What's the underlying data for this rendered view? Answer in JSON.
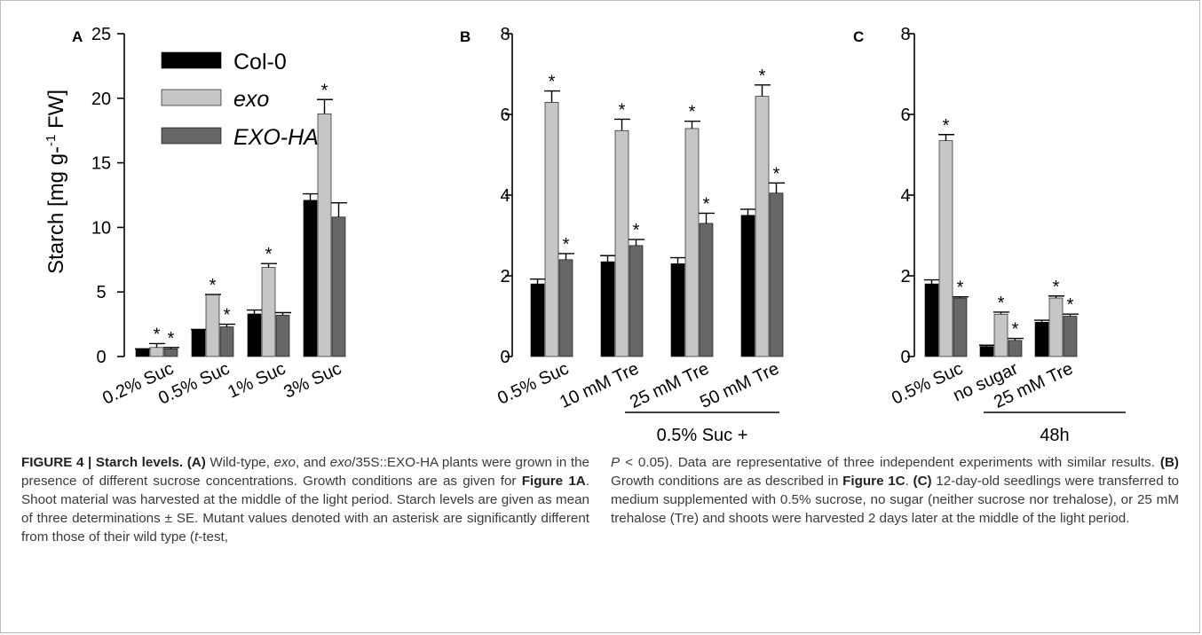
{
  "colors": {
    "col0": "#000000",
    "exo": "#c6c6c6",
    "exoha": "#666666"
  },
  "legend": {
    "items": [
      "Col-0",
      "exo",
      "EXO-HA"
    ],
    "italic": [
      false,
      true,
      true
    ]
  },
  "chart_data": [
    {
      "panel": "A",
      "type": "bar",
      "ylabel": "Starch [mg g-1 FW]",
      "ylim": [
        0,
        25
      ],
      "yticks": [
        "0",
        "5",
        "10",
        "15",
        "20",
        "25"
      ],
      "categories": [
        "0.2% Suc",
        "0.5% Suc",
        "1% Suc",
        "3% Suc"
      ],
      "series": [
        {
          "name": "Col-0",
          "values": [
            0.6,
            2.1,
            3.3,
            12.1
          ],
          "errors": [
            0.0,
            0.0,
            0.3,
            0.5
          ],
          "significant": [
            false,
            false,
            false,
            false
          ]
        },
        {
          "name": "exo",
          "values": [
            0.7,
            4.8,
            6.9,
            18.8
          ],
          "errors": [
            0.3,
            0.0,
            0.3,
            1.1
          ],
          "significant": [
            true,
            true,
            true,
            true
          ]
        },
        {
          "name": "EXO-HA",
          "values": [
            0.6,
            2.3,
            3.2,
            10.8
          ],
          "errors": [
            0.1,
            0.2,
            0.2,
            1.1
          ],
          "significant": [
            true,
            true,
            false,
            false
          ]
        }
      ]
    },
    {
      "panel": "B",
      "type": "bar",
      "ylim": [
        0,
        8
      ],
      "yticks": [
        "0",
        "2",
        "4",
        "6",
        "8"
      ],
      "categories": [
        "0.5% Suc",
        "10 mM Tre",
        "25 mM Tre",
        "50 mM Tre"
      ],
      "group_label": "0.5% Suc +",
      "series": [
        {
          "name": "Col-0",
          "values": [
            1.8,
            2.35,
            2.3,
            3.5
          ],
          "errors": [
            0.12,
            0.15,
            0.15,
            0.15
          ],
          "significant": [
            false,
            false,
            false,
            false
          ]
        },
        {
          "name": "exo",
          "values": [
            6.3,
            5.6,
            5.65,
            6.45
          ],
          "errors": [
            0.28,
            0.28,
            0.18,
            0.28
          ],
          "significant": [
            true,
            true,
            true,
            true
          ]
        },
        {
          "name": "EXO-HA",
          "values": [
            2.4,
            2.75,
            3.3,
            4.05
          ],
          "errors": [
            0.15,
            0.15,
            0.25,
            0.25
          ],
          "significant": [
            true,
            true,
            true,
            true
          ]
        }
      ]
    },
    {
      "panel": "C",
      "type": "bar",
      "ylim": [
        0,
        8
      ],
      "yticks": [
        "0",
        "2",
        "4",
        "6",
        "8"
      ],
      "categories": [
        "0.5% Suc",
        "no sugar",
        "25 mM Tre"
      ],
      "group_label": "48h",
      "series": [
        {
          "name": "Col-0",
          "values": [
            1.8,
            0.25,
            0.85
          ],
          "errors": [
            0.1,
            0.03,
            0.05
          ],
          "significant": [
            false,
            false,
            false
          ]
        },
        {
          "name": "exo",
          "values": [
            5.35,
            1.05,
            1.45
          ],
          "errors": [
            0.15,
            0.05,
            0.05
          ],
          "significant": [
            true,
            true,
            true
          ]
        },
        {
          "name": "EXO-HA",
          "values": [
            1.45,
            0.4,
            1.0
          ],
          "errors": [
            0.03,
            0.05,
            0.05
          ],
          "significant": [
            true,
            true,
            true
          ]
        }
      ]
    }
  ],
  "caption": {
    "left": [
      {
        "t": "FIGURE 4 | Starch levels.",
        "b": true
      },
      {
        "t": " "
      },
      {
        "t": "(A)",
        "b": true
      },
      {
        "t": " Wild-type, "
      },
      {
        "t": "exo",
        "i": true
      },
      {
        "t": ", and "
      },
      {
        "t": "exo",
        "i": true
      },
      {
        "t": "/35S::EXO-HA plants were grown in the presence of different sucrose concentrations. Growth conditions are as given for "
      },
      {
        "t": "Figure 1A",
        "b": true
      },
      {
        "t": ". Shoot material was harvested at the middle of the light period. Starch levels are given as mean of three determinations ± SE. Mutant values denoted with an asterisk are significantly different from those of their wild type ("
      },
      {
        "t": "t",
        "i": true
      },
      {
        "t": "-test,"
      }
    ],
    "right": [
      {
        "t": "P",
        "i": true
      },
      {
        "t": " < 0.05). Data are representative of three independent experiments with similar results. "
      },
      {
        "t": "(B)",
        "b": true
      },
      {
        "t": " Growth conditions are as described in "
      },
      {
        "t": "Figure 1C",
        "b": true
      },
      {
        "t": ". "
      },
      {
        "t": "(C)",
        "b": true
      },
      {
        "t": " 12-day-old seedlings were transferred to medium supplemented with 0.5% sucrose, no sugar (neither sucrose nor trehalose), or 25 mM trehalose (Tre) and shoots were harvested 2 days later at the middle of the light period."
      }
    ]
  }
}
